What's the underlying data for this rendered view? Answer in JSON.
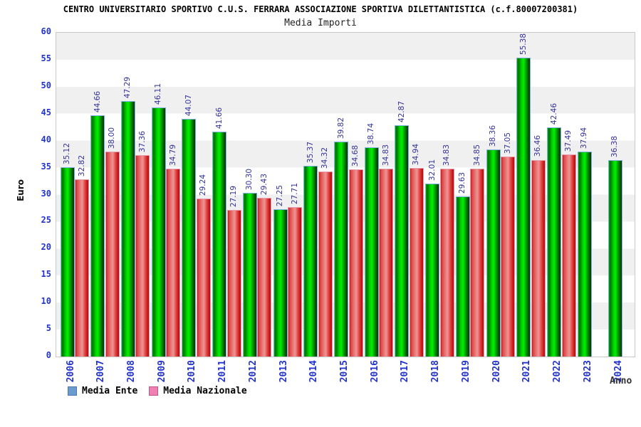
{
  "header": {
    "title": "CENTRO UNIVERSITARIO SPORTIVO C.U.S. FERRARA ASSOCIAZIONE SPORTIVA DILETTANTISTICA (c.f.80007200381)",
    "subtitle": "Media Importi"
  },
  "axes": {
    "y_label": "Euro",
    "x_label": "Anno",
    "y_ticks": [
      0,
      5,
      10,
      15,
      20,
      25,
      30,
      35,
      40,
      45,
      50,
      55,
      60
    ]
  },
  "colors": {
    "tick_label_blue": "#2233CC",
    "value_label_navy": "#333399",
    "band_gray": "#F0F0F0",
    "plot_border": "#C9C9C9",
    "green_bar_main": "#00EE00",
    "red_bar_main": "#E04040",
    "legend_ente_swatch": "#6C9BD2",
    "legend_ente_border": "#4A7AB0",
    "legend_nazionale_swatch": "#F07FB2",
    "legend_nazionale_border": "#C25585"
  },
  "chart_data": {
    "type": "bar",
    "title": "CENTRO UNIVERSITARIO SPORTIVO C.U.S. FERRARA ASSOCIAZIONE SPORTIVA DILETTANTISTICA (c.f.80007200381)",
    "subtitle": "Media Importi",
    "xlabel": "Anno",
    "ylabel": "Euro",
    "ylim": [
      0,
      60
    ],
    "ytick_step": 5,
    "grid": "horizontal-bands",
    "legend_position": "bottom-left",
    "value_labels": "rotated-90-above-bars",
    "categories": [
      "2006",
      "2007",
      "2008",
      "2009",
      "2010",
      "2011",
      "2012",
      "2013",
      "2014",
      "2015",
      "2016",
      "2017",
      "2018",
      "2019",
      "2020",
      "2021",
      "2022",
      "2023",
      "2024"
    ],
    "series": [
      {
        "name": "Media Ente",
        "bar_color": "green-gradient",
        "legend_swatch": "#6C9BD2",
        "legend_swatch_border": "#4A7AB0",
        "values": [
          35.12,
          44.66,
          47.29,
          46.11,
          44.07,
          41.66,
          30.3,
          27.25,
          35.37,
          39.82,
          38.74,
          42.87,
          32.01,
          29.63,
          38.36,
          55.38,
          42.46,
          37.94,
          36.38
        ]
      },
      {
        "name": "Media Nazionale",
        "bar_color": "red-gradient",
        "legend_swatch": "#F07FB2",
        "legend_swatch_border": "#C25585",
        "values": [
          32.82,
          38.0,
          37.36,
          34.79,
          29.24,
          27.19,
          29.43,
          27.71,
          34.32,
          34.68,
          34.83,
          34.94,
          34.83,
          34.85,
          37.05,
          36.46,
          37.49,
          null,
          null
        ]
      }
    ]
  }
}
